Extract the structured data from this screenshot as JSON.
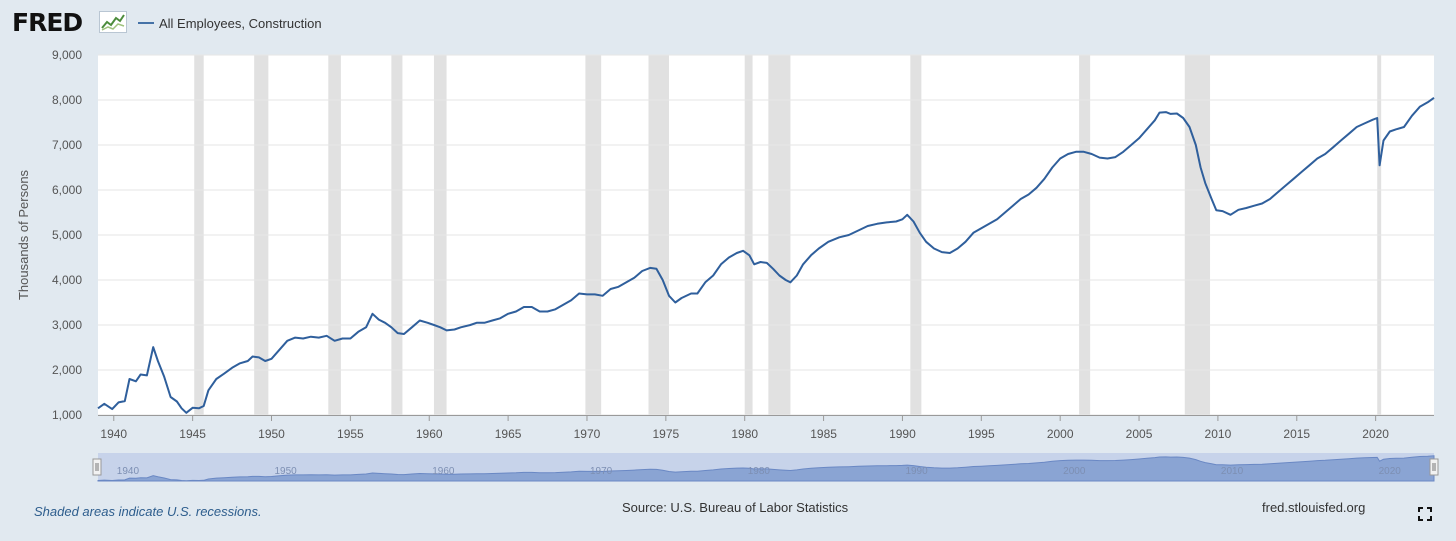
{
  "header": {
    "logo_text": "FRED",
    "logo_icon": "line-chart-icon",
    "series_label": "All Employees, Construction",
    "series_color": "#4572a7"
  },
  "chart_data": {
    "type": "line",
    "title": "",
    "xlabel": "",
    "ylabel": "Thousands of Persons",
    "xlim": [
      1939.0,
      2023.7
    ],
    "ylim": [
      1000,
      9000
    ],
    "grid": true,
    "yticks": [
      1000,
      2000,
      3000,
      4000,
      5000,
      6000,
      7000,
      8000,
      9000
    ],
    "ytick_labels": [
      "1,000",
      "2,000",
      "3,000",
      "4,000",
      "5,000",
      "6,000",
      "7,000",
      "8,000",
      "9,000"
    ],
    "xticks": [
      1940,
      1945,
      1950,
      1955,
      1960,
      1965,
      1970,
      1975,
      1980,
      1985,
      1990,
      1995,
      2000,
      2005,
      2010,
      2015,
      2020
    ],
    "xtick_labels": [
      "1940",
      "1945",
      "1950",
      "1955",
      "1960",
      "1965",
      "1970",
      "1975",
      "1980",
      "1985",
      "1990",
      "1995",
      "2000",
      "2005",
      "2010",
      "2015",
      "2020"
    ],
    "recessions": [
      [
        1945.1,
        1945.7
      ],
      [
        1948.9,
        1949.8
      ],
      [
        1953.6,
        1954.4
      ],
      [
        1957.6,
        1958.3
      ],
      [
        1960.3,
        1961.1
      ],
      [
        1969.9,
        1970.9
      ],
      [
        1973.9,
        1975.2
      ],
      [
        1980.0,
        1980.5
      ],
      [
        1981.5,
        1982.9
      ],
      [
        1990.5,
        1991.2
      ],
      [
        2001.2,
        2001.9
      ],
      [
        2007.9,
        2009.5
      ],
      [
        2020.1,
        2020.35
      ]
    ],
    "series": [
      {
        "name": "All Employees, Construction",
        "color": "#2f5f9c",
        "points": [
          [
            1939.0,
            1150
          ],
          [
            1939.4,
            1250
          ],
          [
            1939.9,
            1130
          ],
          [
            1940.3,
            1280
          ],
          [
            1940.7,
            1310
          ],
          [
            1941.0,
            1800
          ],
          [
            1941.4,
            1750
          ],
          [
            1941.7,
            1900
          ],
          [
            1942.1,
            1880
          ],
          [
            1942.5,
            2510
          ],
          [
            1942.8,
            2200
          ],
          [
            1943.2,
            1850
          ],
          [
            1943.6,
            1400
          ],
          [
            1944.0,
            1300
          ],
          [
            1944.3,
            1150
          ],
          [
            1944.6,
            1050
          ],
          [
            1945.0,
            1160
          ],
          [
            1945.4,
            1150
          ],
          [
            1945.7,
            1200
          ],
          [
            1946.0,
            1550
          ],
          [
            1946.5,
            1800
          ],
          [
            1947.0,
            1920
          ],
          [
            1947.5,
            2050
          ],
          [
            1948.0,
            2150
          ],
          [
            1948.5,
            2200
          ],
          [
            1948.8,
            2300
          ],
          [
            1949.2,
            2280
          ],
          [
            1949.6,
            2200
          ],
          [
            1950.0,
            2250
          ],
          [
            1950.5,
            2450
          ],
          [
            1951.0,
            2650
          ],
          [
            1951.5,
            2720
          ],
          [
            1952.0,
            2700
          ],
          [
            1952.5,
            2740
          ],
          [
            1953.0,
            2720
          ],
          [
            1953.5,
            2760
          ],
          [
            1954.0,
            2650
          ],
          [
            1954.5,
            2700
          ],
          [
            1955.0,
            2700
          ],
          [
            1955.5,
            2850
          ],
          [
            1956.0,
            2950
          ],
          [
            1956.4,
            3250
          ],
          [
            1956.8,
            3120
          ],
          [
            1957.2,
            3050
          ],
          [
            1957.6,
            2950
          ],
          [
            1958.0,
            2820
          ],
          [
            1958.4,
            2800
          ],
          [
            1958.9,
            2950
          ],
          [
            1959.4,
            3100
          ],
          [
            1959.9,
            3050
          ],
          [
            1960.3,
            3000
          ],
          [
            1960.7,
            2950
          ],
          [
            1961.1,
            2880
          ],
          [
            1961.6,
            2900
          ],
          [
            1962.0,
            2950
          ],
          [
            1962.6,
            3000
          ],
          [
            1963.0,
            3050
          ],
          [
            1963.5,
            3050
          ],
          [
            1964.0,
            3100
          ],
          [
            1964.5,
            3150
          ],
          [
            1965.0,
            3250
          ],
          [
            1965.5,
            3300
          ],
          [
            1966.0,
            3400
          ],
          [
            1966.5,
            3400
          ],
          [
            1967.0,
            3300
          ],
          [
            1967.5,
            3300
          ],
          [
            1968.0,
            3350
          ],
          [
            1968.5,
            3450
          ],
          [
            1969.0,
            3550
          ],
          [
            1969.5,
            3700
          ],
          [
            1970.0,
            3680
          ],
          [
            1970.5,
            3680
          ],
          [
            1971.0,
            3650
          ],
          [
            1971.5,
            3800
          ],
          [
            1972.0,
            3850
          ],
          [
            1972.5,
            3950
          ],
          [
            1973.0,
            4050
          ],
          [
            1973.5,
            4200
          ],
          [
            1974.0,
            4270
          ],
          [
            1974.4,
            4250
          ],
          [
            1974.8,
            4000
          ],
          [
            1975.2,
            3650
          ],
          [
            1975.6,
            3500
          ],
          [
            1976.0,
            3600
          ],
          [
            1976.6,
            3700
          ],
          [
            1977.0,
            3700
          ],
          [
            1977.5,
            3950
          ],
          [
            1978.0,
            4100
          ],
          [
            1978.5,
            4350
          ],
          [
            1979.0,
            4500
          ],
          [
            1979.5,
            4600
          ],
          [
            1979.9,
            4650
          ],
          [
            1980.3,
            4550
          ],
          [
            1980.6,
            4350
          ],
          [
            1981.0,
            4400
          ],
          [
            1981.4,
            4380
          ],
          [
            1981.8,
            4250
          ],
          [
            1982.2,
            4100
          ],
          [
            1982.6,
            4000
          ],
          [
            1982.9,
            3950
          ],
          [
            1983.3,
            4100
          ],
          [
            1983.7,
            4350
          ],
          [
            1984.2,
            4550
          ],
          [
            1984.7,
            4700
          ],
          [
            1985.3,
            4850
          ],
          [
            1986.0,
            4950
          ],
          [
            1986.6,
            5000
          ],
          [
            1987.2,
            5100
          ],
          [
            1987.8,
            5200
          ],
          [
            1988.4,
            5250
          ],
          [
            1989.0,
            5280
          ],
          [
            1989.6,
            5300
          ],
          [
            1990.0,
            5350
          ],
          [
            1990.3,
            5450
          ],
          [
            1990.7,
            5300
          ],
          [
            1991.1,
            5050
          ],
          [
            1991.5,
            4850
          ],
          [
            1992.0,
            4700
          ],
          [
            1992.5,
            4620
          ],
          [
            1993.0,
            4600
          ],
          [
            1993.5,
            4700
          ],
          [
            1994.0,
            4850
          ],
          [
            1994.5,
            5050
          ],
          [
            1995.0,
            5150
          ],
          [
            1995.5,
            5250
          ],
          [
            1996.0,
            5350
          ],
          [
            1996.5,
            5500
          ],
          [
            1997.0,
            5650
          ],
          [
            1997.5,
            5800
          ],
          [
            1998.0,
            5900
          ],
          [
            1998.5,
            6050
          ],
          [
            1999.0,
            6250
          ],
          [
            1999.5,
            6500
          ],
          [
            2000.0,
            6700
          ],
          [
            2000.5,
            6800
          ],
          [
            2001.0,
            6850
          ],
          [
            2001.5,
            6850
          ],
          [
            2002.0,
            6800
          ],
          [
            2002.5,
            6720
          ],
          [
            2003.0,
            6700
          ],
          [
            2003.5,
            6730
          ],
          [
            2004.0,
            6850
          ],
          [
            2004.5,
            7000
          ],
          [
            2005.0,
            7150
          ],
          [
            2005.5,
            7350
          ],
          [
            2006.0,
            7550
          ],
          [
            2006.3,
            7720
          ],
          [
            2006.7,
            7730
          ],
          [
            2007.0,
            7690
          ],
          [
            2007.4,
            7700
          ],
          [
            2007.8,
            7600
          ],
          [
            2008.2,
            7400
          ],
          [
            2008.6,
            7000
          ],
          [
            2008.9,
            6500
          ],
          [
            2009.2,
            6150
          ],
          [
            2009.6,
            5800
          ],
          [
            2009.9,
            5550
          ],
          [
            2010.3,
            5530
          ],
          [
            2010.8,
            5450
          ],
          [
            2011.3,
            5560
          ],
          [
            2011.8,
            5600
          ],
          [
            2012.3,
            5650
          ],
          [
            2012.8,
            5700
          ],
          [
            2013.3,
            5800
          ],
          [
            2013.8,
            5950
          ],
          [
            2014.3,
            6100
          ],
          [
            2014.8,
            6250
          ],
          [
            2015.3,
            6400
          ],
          [
            2015.8,
            6550
          ],
          [
            2016.3,
            6700
          ],
          [
            2016.8,
            6800
          ],
          [
            2017.3,
            6950
          ],
          [
            2017.8,
            7100
          ],
          [
            2018.3,
            7250
          ],
          [
            2018.8,
            7400
          ],
          [
            2019.3,
            7480
          ],
          [
            2019.8,
            7560
          ],
          [
            2020.1,
            7600
          ],
          [
            2020.25,
            6550
          ],
          [
            2020.5,
            7100
          ],
          [
            2020.9,
            7300
          ],
          [
            2021.3,
            7350
          ],
          [
            2021.8,
            7400
          ],
          [
            2022.3,
            7650
          ],
          [
            2022.8,
            7850
          ],
          [
            2023.3,
            7950
          ],
          [
            2023.7,
            8050
          ]
        ]
      }
    ],
    "navigator": {
      "tick_labels": [
        "1940",
        "1950",
        "1960",
        "1970",
        "1980",
        "1990",
        "2000",
        "2010",
        "2020"
      ]
    }
  },
  "footer": {
    "recession_note": "Shaded areas indicate U.S. recessions.",
    "source": "Source: U.S. Bureau of Labor Statistics",
    "site": "fred.stlouisfed.org",
    "fullscreen_icon": "fullscreen-icon"
  }
}
